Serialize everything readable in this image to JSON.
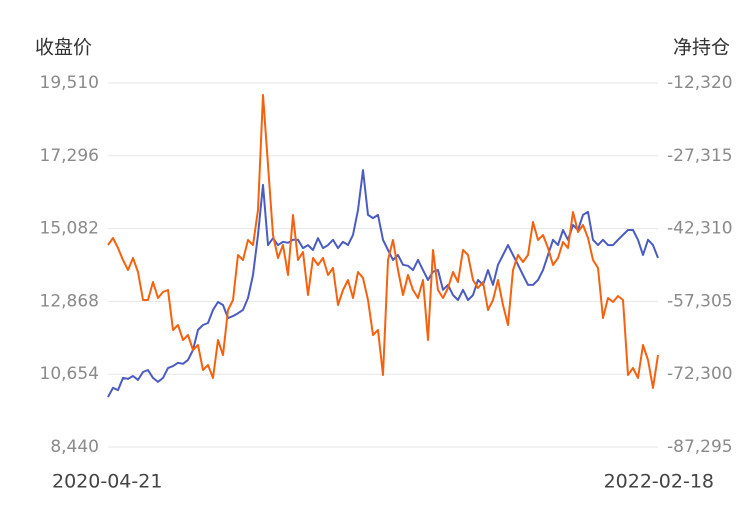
{
  "chart_data": {
    "type": "line",
    "y_label": "收盘价",
    "y2_label": "净持仓",
    "categories": [
      "2020-04-21",
      null,
      null,
      null,
      null,
      null,
      null,
      null,
      null,
      null,
      null,
      null,
      null,
      null,
      null,
      null,
      null,
      null,
      null,
      null,
      null,
      null,
      null,
      null,
      null,
      null,
      null,
      null,
      null,
      null,
      null,
      null,
      null,
      null,
      null,
      null,
      null,
      null,
      null,
      null,
      null,
      null,
      null,
      null,
      null,
      null,
      null,
      null,
      null,
      null,
      null,
      null,
      null,
      null,
      null,
      null,
      null,
      null,
      null,
      null,
      null,
      null,
      null,
      null,
      null,
      null,
      null,
      null,
      null,
      null,
      null,
      null,
      null,
      null,
      null,
      null,
      null,
      null,
      null,
      null,
      null,
      null,
      null,
      null,
      null,
      null,
      null,
      null,
      null,
      null,
      null,
      null,
      null,
      null,
      null,
      null,
      null,
      null,
      null,
      null,
      null,
      null,
      null,
      null,
      null,
      null,
      null,
      null,
      null,
      null,
      "2022-02-18"
    ],
    "ylim": [
      8440,
      19510
    ],
    "yticks": [
      {
        "value": 8440,
        "label": "8,440"
      },
      {
        "value": 10654,
        "label": "10,654"
      },
      {
        "value": 12868,
        "label": "12,868"
      },
      {
        "value": 15082,
        "label": "15,082"
      },
      {
        "value": 17296,
        "label": "17,296"
      },
      {
        "value": 19510,
        "label": "19,510"
      }
    ],
    "y2lim": [
      -87295,
      -12320
    ],
    "y2ticks": [
      {
        "value": -87295,
        "label": "-87,295"
      },
      {
        "value": -72300,
        "label": "-72,300"
      },
      {
        "value": -57305,
        "label": "-57,305"
      },
      {
        "value": -42310,
        "label": "-42,310"
      },
      {
        "value": -27315,
        "label": "-27,315"
      },
      {
        "value": -12320,
        "label": "-12,320"
      }
    ],
    "grid": true,
    "series": [
      {
        "color": "#4a5cc0",
        "values": [
          9960,
          10240,
          10170,
          10540,
          10510,
          10600,
          10480,
          10720,
          10780,
          10540,
          10420,
          10540,
          10840,
          10900,
          11000,
          10970,
          11090,
          11390,
          12000,
          12150,
          12210,
          12610,
          12850,
          12760,
          12360,
          12420,
          12510,
          12610,
          12970,
          13670,
          14890,
          16410,
          14580,
          14790,
          14580,
          14680,
          14650,
          14740,
          14740,
          14490,
          14580,
          14430,
          14790,
          14490,
          14580,
          14740,
          14490,
          14680,
          14580,
          14890,
          15650,
          16860,
          15500,
          15400,
          15500,
          14740,
          14430,
          14130,
          14280,
          13980,
          13950,
          13820,
          14130,
          13820,
          13520,
          13770,
          13820,
          13220,
          13370,
          13060,
          12910,
          13220,
          12910,
          13060,
          13520,
          13370,
          13820,
          13370,
          13980,
          14280,
          14580,
          14280,
          13980,
          13670,
          13370,
          13370,
          13520,
          13820,
          14280,
          14740,
          14580,
          15040,
          14740,
          15190,
          15040,
          15500,
          15590,
          14740,
          14580,
          14740,
          14580,
          14580,
          14740,
          14890,
          15040,
          15040,
          14740,
          14280,
          14740,
          14580,
          14190
        ]
      },
      {
        "color": "#f5620f",
        "axis": "y2",
        "values": [
          -45690,
          -44250,
          -46310,
          -48780,
          -50840,
          -48370,
          -51250,
          -57020,
          -57020,
          -53310,
          -56610,
          -55370,
          -54960,
          -63200,
          -62170,
          -65260,
          -64230,
          -67320,
          -66290,
          -71440,
          -70410,
          -73090,
          -65260,
          -68350,
          -59080,
          -57020,
          -47750,
          -48780,
          -44660,
          -45690,
          -38480,
          -14790,
          -29210,
          -43630,
          -48370,
          -45690,
          -51870,
          -39510,
          -48780,
          -47130,
          -55990,
          -48370,
          -49810,
          -48370,
          -51870,
          -50430,
          -58050,
          -54960,
          -52900,
          -56610,
          -51250,
          -52490,
          -57020,
          -64230,
          -63200,
          -72470,
          -48780,
          -44660,
          -50840,
          -55990,
          -51870,
          -54960,
          -56610,
          -52900,
          -65260,
          -46720,
          -54960,
          -56610,
          -54550,
          -51250,
          -53310,
          -46720,
          -47750,
          -52900,
          -54550,
          -53310,
          -59080,
          -57020,
          -52900,
          -58050,
          -62170,
          -50840,
          -47750,
          -49190,
          -47750,
          -40950,
          -44660,
          -43630,
          -46310,
          -49810,
          -48370,
          -45070,
          -46310,
          -38890,
          -43010,
          -41570,
          -44250,
          -48780,
          -50430,
          -60730,
          -56610,
          -57430,
          -56200,
          -57020,
          -72470,
          -71030,
          -73090,
          -66290,
          -69380,
          -75150,
          -68350
        ]
      }
    ]
  }
}
